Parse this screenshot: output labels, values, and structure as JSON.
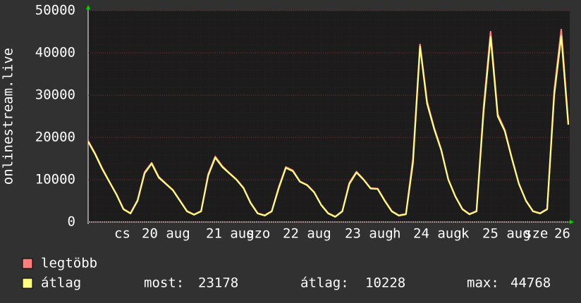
{
  "chart_data": {
    "type": "line",
    "y_label": "onlinestream.live",
    "ylim": [
      0,
      50000
    ],
    "yticks": [
      0,
      10000,
      20000,
      30000,
      40000,
      50000
    ],
    "grid": true,
    "x_labels": [
      "cs",
      "20 aug",
      "21 aug",
      "szo",
      "22 aug",
      "23 aug",
      "h",
      "24 aug",
      "k",
      "25 aug",
      "sze",
      "26"
    ],
    "series": [
      {
        "name": "legtöbb",
        "color": "#ff7f7f",
        "values": [
          19200,
          16200,
          12700,
          9600,
          6600,
          3100,
          2100,
          5200,
          11800,
          14000,
          10700,
          9100,
          7600,
          5100,
          2600,
          1800,
          2600,
          11300,
          15500,
          13200,
          11600,
          10100,
          8100,
          4600,
          2100,
          1600,
          2600,
          8300,
          13000,
          12200,
          9600,
          8800,
          7100,
          4100,
          2100,
          1300,
          2600,
          9300,
          11900,
          10100,
          8000,
          7900,
          5100,
          2600,
          1600,
          1900,
          15000,
          42000,
          28500,
          22300,
          17200,
          10100,
          6100,
          3100,
          1900,
          2600,
          27000,
          45000,
          25500,
          21800,
          15200,
          9100,
          5100,
          2600,
          2100,
          3100,
          31000,
          45500,
          23500
        ]
      },
      {
        "name": "átlag",
        "color": "#ffff7f",
        "values": [
          19000,
          16000,
          12500,
          9500,
          6500,
          3000,
          2000,
          5000,
          11500,
          13800,
          10500,
          9000,
          7500,
          5000,
          2500,
          1700,
          2500,
          11000,
          15200,
          13000,
          11500,
          10000,
          8000,
          4500,
          2000,
          1500,
          2500,
          8000,
          12800,
          12000,
          9500,
          8700,
          7000,
          4000,
          2000,
          1200,
          2500,
          9000,
          11700,
          10000,
          7900,
          7800,
          5000,
          2500,
          1500,
          1800,
          14000,
          41500,
          28000,
          22000,
          17000,
          10000,
          6000,
          3000,
          1800,
          2500,
          26000,
          43800,
          25000,
          21500,
          15000,
          9000,
          5000,
          2500,
          2000,
          3000,
          30000,
          44000,
          23000
        ]
      }
    ],
    "stats": [
      {
        "label": "most:",
        "value": 23178
      },
      {
        "label": "átlag:",
        "value": 10228
      },
      {
        "label": "max:",
        "value": 44768
      }
    ]
  }
}
